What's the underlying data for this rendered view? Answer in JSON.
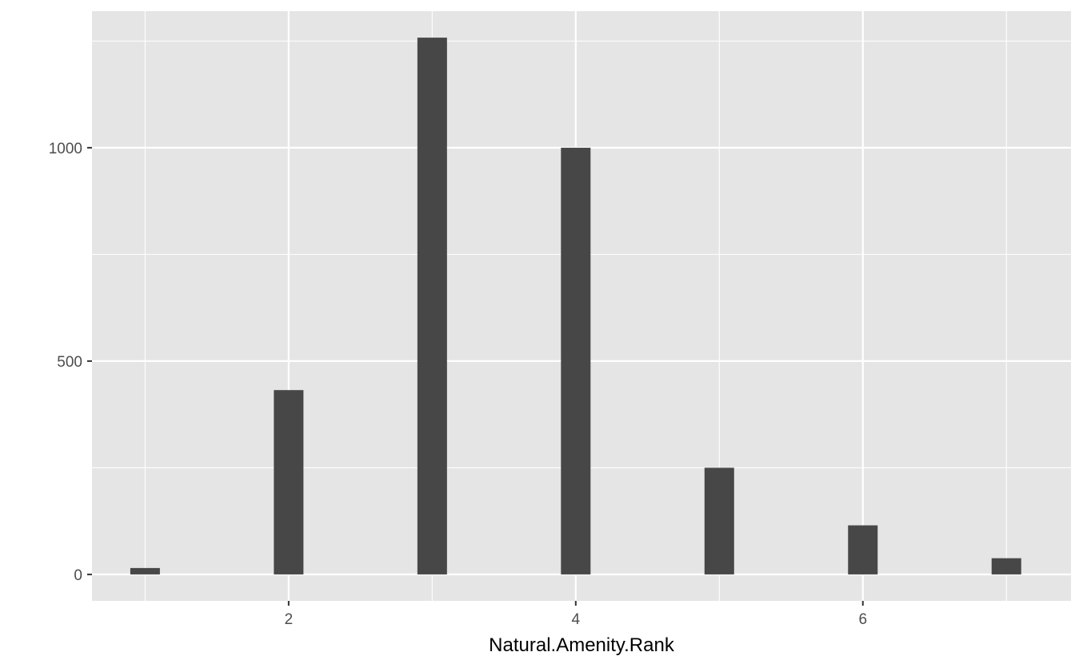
{
  "chart_data": {
    "type": "bar",
    "title": "",
    "xlabel": "Natural.Amenity.Rank",
    "ylabel": "",
    "x": [
      1,
      2,
      3,
      4,
      5,
      6,
      7
    ],
    "values": [
      15,
      432,
      1258,
      1000,
      250,
      115,
      38
    ],
    "xlim": [
      0.63,
      7.45
    ],
    "ylim": [
      -62,
      1320
    ],
    "x_ticks": [
      2,
      4,
      6
    ],
    "x_tick_labels": [
      "2",
      "4",
      "6"
    ],
    "y_ticks": [
      0,
      500,
      1000
    ],
    "y_tick_labels": [
      "0",
      "500",
      "1000"
    ],
    "x_minor_ticks": [
      1,
      3,
      5,
      7
    ],
    "y_minor_ticks": [
      250,
      750,
      1250
    ],
    "grid": true,
    "legend": "none",
    "colors": {
      "bar": "#474747",
      "panel_background": "#e5e5e5",
      "grid": "#ffffff",
      "tick_text": "#4d4d4d",
      "axis_title": "#000000"
    }
  }
}
